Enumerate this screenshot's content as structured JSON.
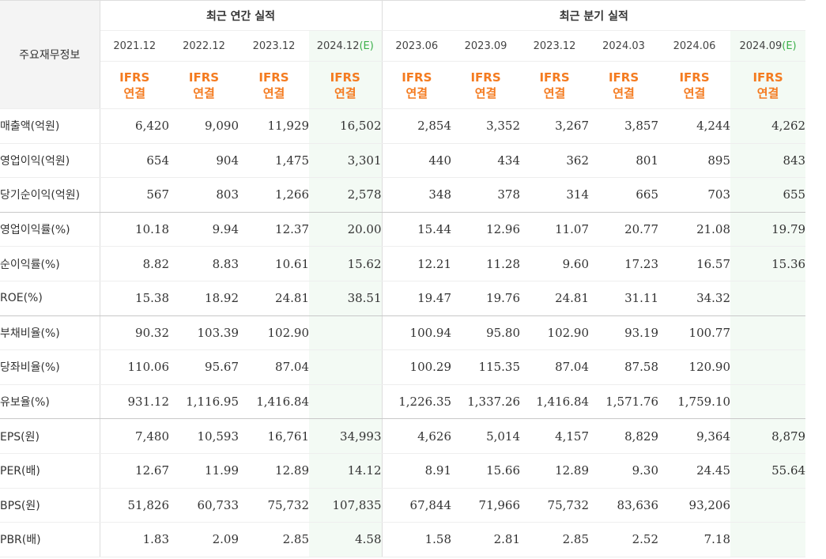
{
  "table": {
    "corner_label": "주요재무정보",
    "annual_header": "최근 연간 실적",
    "quarter_header": "최근 분기 실적",
    "periods": [
      {
        "label": "2021.12",
        "est": ""
      },
      {
        "label": "2022.12",
        "est": ""
      },
      {
        "label": "2023.12",
        "est": ""
      },
      {
        "label": "2024.12",
        "est": "(E)"
      },
      {
        "label": "2023.06",
        "est": ""
      },
      {
        "label": "2023.09",
        "est": ""
      },
      {
        "label": "2023.12",
        "est": ""
      },
      {
        "label": "2024.03",
        "est": ""
      },
      {
        "label": "2024.06",
        "est": ""
      },
      {
        "label": "2024.09",
        "est": "(E)"
      }
    ],
    "ifrs_line1": "IFRS",
    "ifrs_line2": "연결",
    "rows": [
      {
        "label": "매출액(억원)",
        "values": [
          "6,420",
          "9,090",
          "11,929",
          "16,502",
          "2,854",
          "3,352",
          "3,267",
          "3,857",
          "4,244",
          "4,262"
        ]
      },
      {
        "label": "영업이익(억원)",
        "values": [
          "654",
          "904",
          "1,475",
          "3,301",
          "440",
          "434",
          "362",
          "801",
          "895",
          "843"
        ]
      },
      {
        "label": "당기순이익(억원)",
        "values": [
          "567",
          "803",
          "1,266",
          "2,578",
          "348",
          "378",
          "314",
          "665",
          "703",
          "655"
        ]
      },
      {
        "label": "영업이익률(%)",
        "values": [
          "10.18",
          "9.94",
          "12.37",
          "20.00",
          "15.44",
          "12.96",
          "11.07",
          "20.77",
          "21.08",
          "19.79"
        ]
      },
      {
        "label": "순이익률(%)",
        "values": [
          "8.82",
          "8.83",
          "10.61",
          "15.62",
          "12.21",
          "11.28",
          "9.60",
          "17.23",
          "16.57",
          "15.36"
        ]
      },
      {
        "label": "ROE(%)",
        "values": [
          "15.38",
          "18.92",
          "24.81",
          "38.51",
          "19.47",
          "19.76",
          "24.81",
          "31.11",
          "34.32",
          ""
        ]
      },
      {
        "label": "부채비율(%)",
        "values": [
          "90.32",
          "103.39",
          "102.90",
          "",
          "100.94",
          "95.80",
          "102.90",
          "93.19",
          "100.77",
          ""
        ]
      },
      {
        "label": "당좌비율(%)",
        "values": [
          "110.06",
          "95.67",
          "87.04",
          "",
          "100.29",
          "115.35",
          "87.04",
          "87.58",
          "120.90",
          ""
        ]
      },
      {
        "label": "유보율(%)",
        "values": [
          "931.12",
          "1,116.95",
          "1,416.84",
          "",
          "1,226.35",
          "1,337.26",
          "1,416.84",
          "1,571.76",
          "1,759.10",
          ""
        ]
      },
      {
        "label": "EPS(원)",
        "values": [
          "7,480",
          "10,593",
          "16,761",
          "34,993",
          "4,626",
          "5,014",
          "4,157",
          "8,829",
          "9,364",
          "8,879"
        ]
      },
      {
        "label": "PER(배)",
        "values": [
          "12.67",
          "11.99",
          "12.89",
          "14.12",
          "8.91",
          "15.66",
          "12.89",
          "9.30",
          "24.45",
          "55.64"
        ]
      },
      {
        "label": "BPS(원)",
        "values": [
          "51,826",
          "60,733",
          "75,732",
          "107,835",
          "67,844",
          "71,966",
          "75,732",
          "83,636",
          "93,206",
          ""
        ]
      },
      {
        "label": "PBR(배)",
        "values": [
          "1.83",
          "2.09",
          "2.85",
          "4.58",
          "1.58",
          "2.81",
          "2.85",
          "2.52",
          "7.18",
          ""
        ]
      }
    ]
  }
}
